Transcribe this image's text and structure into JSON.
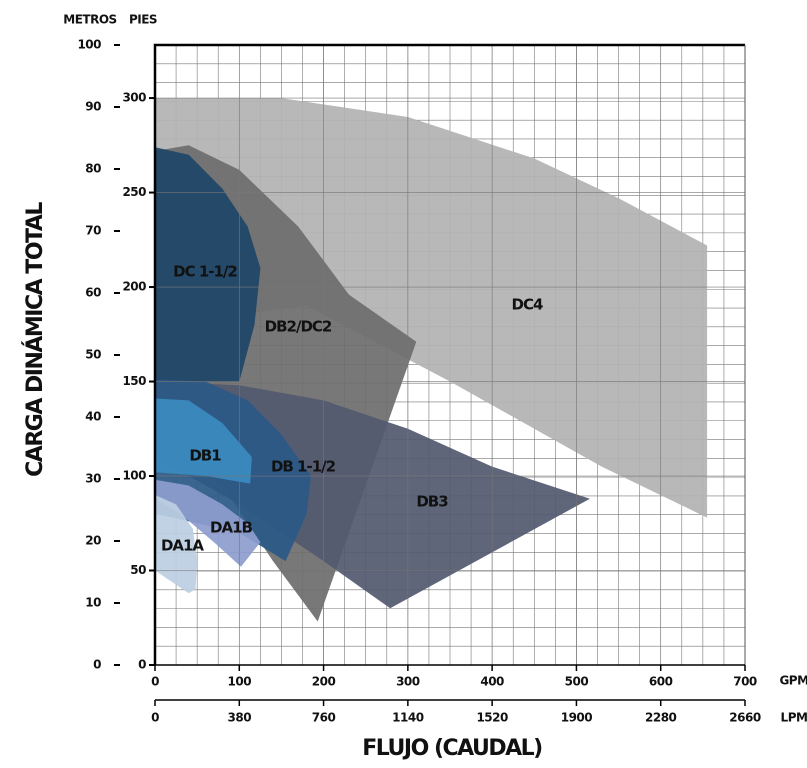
{
  "chart_data": {
    "type": "region",
    "y_axis_label": "CARGA DINÁMICA TOTAL",
    "x_axis_label": "FLUJO (CAUDAL)",
    "y_unit": "METROS",
    "y2_unit": "PIES",
    "x_unit": "GPM",
    "x2_unit": "LPM",
    "xlim": [
      0,
      700
    ],
    "xticks": [
      0,
      100,
      200,
      300,
      400,
      500,
      600,
      700
    ],
    "x2lim": [
      0,
      2660
    ],
    "x2ticks": [
      0,
      380,
      760,
      1140,
      1520,
      1900,
      2280,
      2660
    ],
    "ylim": [
      0,
      100
    ],
    "yticks": [
      0,
      10,
      20,
      30,
      40,
      50,
      60,
      70,
      80,
      90,
      100
    ],
    "y2lim": [
      0,
      328.08
    ],
    "y2ticks": [
      0,
      50,
      100,
      150,
      200,
      250,
      300
    ],
    "grid": true,
    "series": [
      {
        "name": "DC4",
        "color": "#b3b3b3",
        "axis": "y2",
        "x": [
          0,
          150,
          300,
          450,
          550,
          655,
          655,
          530,
          350,
          180,
          0
        ],
        "y": [
          300,
          300,
          290,
          268,
          247,
          222,
          78,
          105,
          150,
          190,
          180
        ]
      },
      {
        "name": "DB2/DC2",
        "color": "#6e6e6e",
        "axis": "y2",
        "x": [
          0,
          40,
          100,
          170,
          230,
          310,
          193,
          140,
          80,
          0
        ],
        "y": [
          272,
          275,
          262,
          232,
          196,
          171,
          23,
          55,
          95,
          120
        ]
      },
      {
        "name": "DC 1-1/2",
        "color": "#1f4668",
        "axis": "y2",
        "x": [
          0,
          40,
          80,
          110,
          125,
          118,
          100,
          0
        ],
        "y": [
          274,
          270,
          252,
          232,
          210,
          180,
          150,
          150
        ]
      },
      {
        "name": "DB3",
        "color": "#545a70",
        "axis": "y2",
        "x": [
          0,
          100,
          200,
          300,
          400,
          516,
          279,
          200,
          100,
          0
        ],
        "y": [
          150,
          148,
          140,
          125,
          105,
          88,
          30,
          55,
          85,
          110
        ]
      },
      {
        "name": "DB 1-1/2",
        "color": "#2b5987",
        "axis": "y2",
        "x": [
          0,
          60,
          110,
          150,
          185,
          180,
          155,
          100,
          0
        ],
        "y": [
          151,
          150,
          140,
          122,
          100,
          80,
          55,
          70,
          80
        ]
      },
      {
        "name": "DB1",
        "color": "#3a8bc0",
        "axis": "y2",
        "x": [
          0,
          40,
          80,
          115,
          113,
          60,
          0
        ],
        "y": [
          141,
          140,
          128,
          110,
          96,
          100,
          102
        ]
      },
      {
        "name": "DA1B",
        "color": "#8d9dcc",
        "axis": "y2",
        "x": [
          0,
          40,
          80,
          110,
          125,
          102,
          70,
          30,
          0
        ],
        "y": [
          98,
          95,
          85,
          75,
          65,
          52,
          65,
          80,
          88
        ]
      },
      {
        "name": "DA1A",
        "color": "#bccfe2",
        "axis": "y2",
        "x": [
          0,
          25,
          45,
          50,
          48,
          40,
          0
        ],
        "y": [
          90,
          85,
          72,
          55,
          40,
          38,
          50
        ]
      }
    ]
  }
}
